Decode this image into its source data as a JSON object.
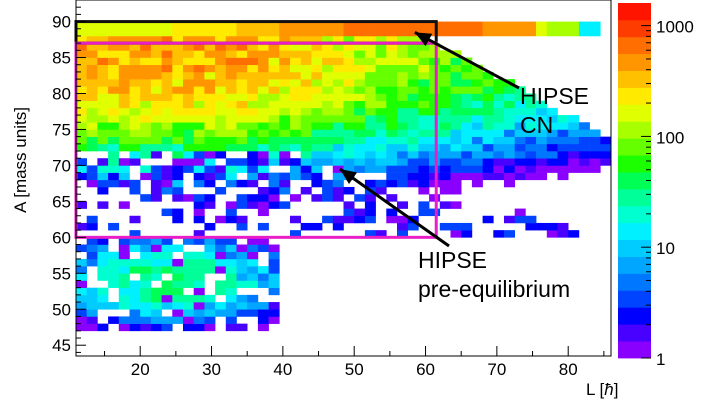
{
  "chart_data": {
    "type": "heatmap",
    "xlabel_prefix": "L [",
    "xlabel_symbol": "ħ",
    "xlabel_suffix": "]",
    "ylabel": "A  [mass units]",
    "xlim": [
      11,
      86
    ],
    "ylim": [
      43.5,
      93
    ],
    "z_scale": "log",
    "zlim": [
      1,
      1600
    ],
    "x_ticks": [
      20,
      30,
      40,
      50,
      60,
      70,
      80
    ],
    "y_ticks": [
      45,
      50,
      55,
      60,
      65,
      70,
      75,
      80,
      85,
      90
    ],
    "z_ticks": [
      {
        "value": 1,
        "label": "1"
      },
      {
        "value": 10,
        "label": "10"
      },
      {
        "value": 100,
        "label": "100"
      },
      {
        "value": 1000,
        "label": "1000"
      }
    ],
    "bin_width_x": 1.5,
    "bin_width_y": 1,
    "grid": false,
    "regions": [
      {
        "name": "HIPSE CN",
        "x0": 11,
        "x1": 61.5,
        "y0": 87,
        "y1": 90,
        "color": "#111111"
      },
      {
        "name": "HIPSE pre-equilibrium",
        "x0": 11,
        "x1": 61.5,
        "y0": 60,
        "y1": 87,
        "color": "#e81ec8"
      }
    ],
    "annotations": [
      {
        "lines": [
          "HIPSE",
          "CN"
        ],
        "arrow_to": {
          "x": 58.5,
          "y": 88.5
        }
      },
      {
        "lines": [
          "HIPSE",
          "pre-equilibrium"
        ],
        "arrow_to": {
          "x": 48,
          "y": 69.5
        }
      }
    ]
  }
}
